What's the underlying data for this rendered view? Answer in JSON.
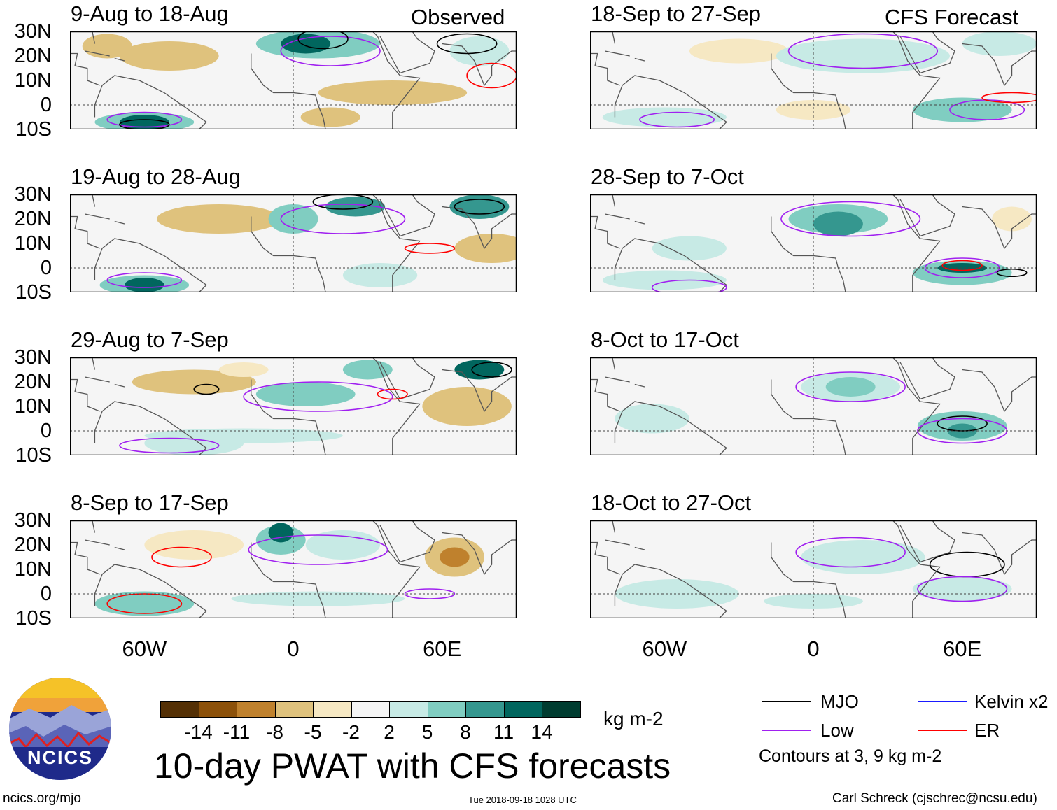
{
  "columns": {
    "left_tag": "Observed",
    "right_tag": "CFS Forecast"
  },
  "panels": {
    "left": [
      "9-Aug to 18-Aug",
      "19-Aug to 28-Aug",
      "29-Aug to 7-Sep",
      "8-Sep to 17-Sep"
    ],
    "right": [
      "18-Sep to 27-Sep",
      "28-Sep to 7-Oct",
      "8-Oct to 17-Oct",
      "18-Oct to 27-Oct"
    ]
  },
  "lat_ticks": [
    "30N",
    "20N",
    "10N",
    "0",
    "10S"
  ],
  "lon_ticks": [
    "60W",
    "0",
    "60E"
  ],
  "colorbar": {
    "unit": "kg m-2",
    "labels": [
      "-14",
      "-11",
      "-8",
      "-5",
      "-2",
      "2",
      "5",
      "8",
      "11",
      "14"
    ],
    "colors": [
      "#543005",
      "#8c510a",
      "#bf812d",
      "#dfc27d",
      "#f6e8c3",
      "#f5f5f5",
      "#c7eae5",
      "#80cdc1",
      "#35978f",
      "#01665e",
      "#003c30"
    ]
  },
  "title": "10-day PWAT with CFS forecasts",
  "legend": {
    "items": [
      {
        "label": "MJO",
        "color": "#000000"
      },
      {
        "label": "Kelvin x2",
        "color": "#1a1aff"
      },
      {
        "label": "Low",
        "color": "#a020f0"
      },
      {
        "label": "ER",
        "color": "#ff0000"
      }
    ],
    "note": "Contours at 3, 9 kg m-2"
  },
  "logo": {
    "text": "NCICS"
  },
  "footer": {
    "url": "ncics.org/mjo",
    "timestamp": "Tue 2018-09-18 1028 UTC",
    "credit": "Carl Schreck (cjschrec@ncsu.edu)"
  }
}
